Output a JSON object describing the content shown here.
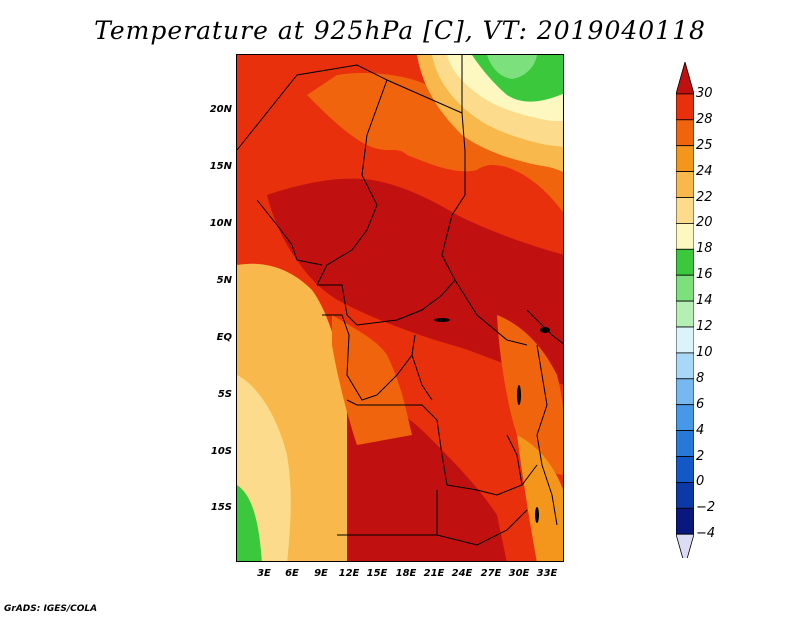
{
  "title": "Temperature at 925hPa [C], VT: 2019040118",
  "credit": "GrADS: IGES/COLA",
  "axes": {
    "lat_labels": [
      "20N",
      "15N",
      "10N",
      "5N",
      "EQ",
      "5S",
      "10S",
      "15S"
    ],
    "lon_labels": [
      "3E",
      "6E",
      "9E",
      "12E",
      "15E",
      "18E",
      "21E",
      "24E",
      "27E",
      "30E",
      "33E"
    ]
  },
  "colorbar": {
    "labels": [
      "30",
      "28",
      "25",
      "24",
      "22",
      "20",
      "18",
      "16",
      "14",
      "12",
      "10",
      "8",
      "6",
      "4",
      "2",
      "0",
      "−2",
      "−4"
    ],
    "colors": [
      "#c01010",
      "#e8300c",
      "#f0640e",
      "#f5961c",
      "#f8b84c",
      "#fcdc8c",
      "#fcf8c0",
      "#3cc83c",
      "#7ce07c",
      "#b4f0b4",
      "#daf4fa",
      "#a8d8f8",
      "#78b8f0",
      "#4898e8",
      "#2878d8",
      "#1458c8",
      "#0c38a8",
      "#08187c",
      "#dcdcf4"
    ]
  }
}
